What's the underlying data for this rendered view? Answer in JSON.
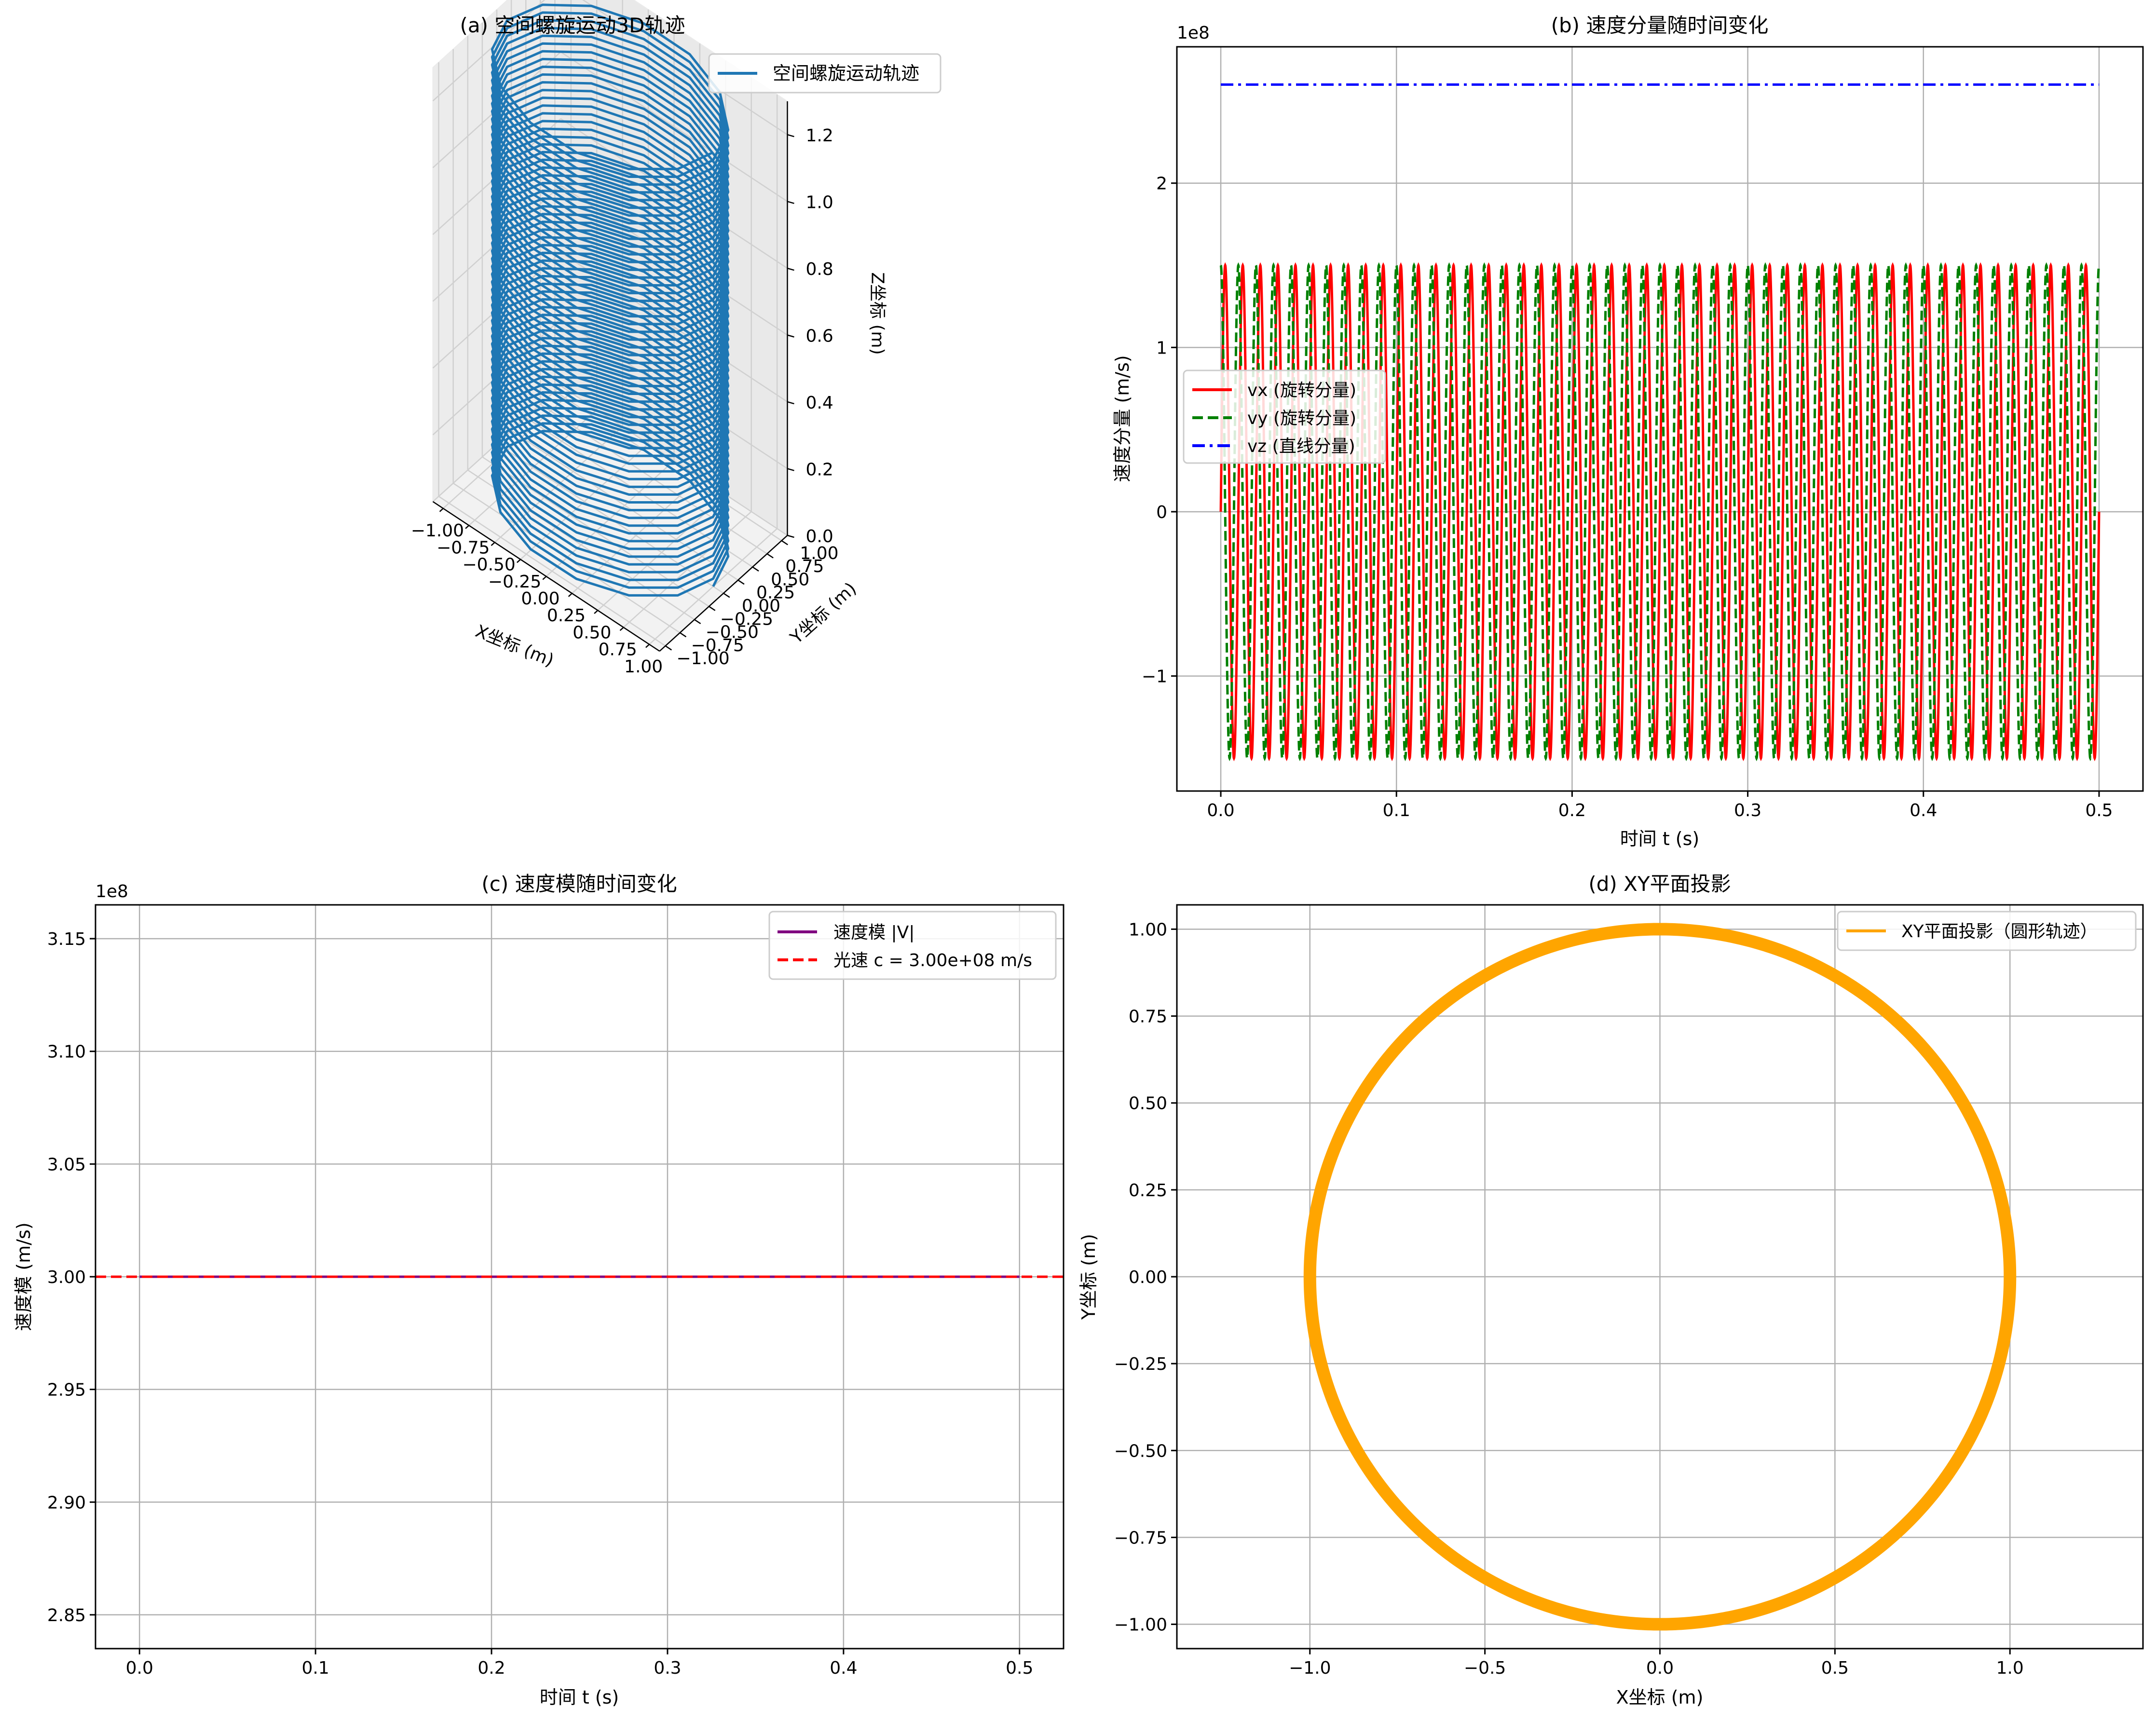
{
  "chart_data": [
    {
      "type": "line3d",
      "title": "(a) 空间螺旋运动3D轨迹",
      "xlabel": "X坐标 (m)",
      "ylabel": "Y坐标 (m)",
      "zlabel": "Z坐标 (m)",
      "xlim": [
        -1.1,
        1.1
      ],
      "ylim": [
        -1.1,
        1.1
      ],
      "zlim": [
        0.0,
        1.3
      ],
      "x_ticks": [
        "−1.00",
        "−0.75",
        "−0.50",
        "−0.25",
        "0.00",
        "0.25",
        "0.50",
        "0.75",
        "1.00"
      ],
      "y_ticks": [
        "−1.00",
        "−0.75",
        "−0.50",
        "−0.25",
        "0.00",
        "0.25",
        "0.50",
        "0.75",
        "1.00"
      ],
      "z_ticks": [
        "0.0",
        "0.2",
        "0.4",
        "0.6",
        "0.8",
        "1.0",
        "1.2"
      ],
      "series": [
        {
          "name": "空间螺旋运动轨迹",
          "color": "#1f77b4",
          "radius": 1.0,
          "turns": 56,
          "z_start": 0.0,
          "z_end": 1.3
        }
      ],
      "legend": "upper-right",
      "grid": true
    },
    {
      "type": "line",
      "title": "(b) 速度分量随时间变化",
      "xlabel": "时间 t (s)",
      "ylabel": "速度分量 (m/s)",
      "offset_text": "1e8",
      "xlim": [
        -0.025,
        0.525
      ],
      "ylim": [
        -1.7,
        2.83
      ],
      "x_ticks": [
        "0.0",
        "0.1",
        "0.2",
        "0.3",
        "0.4",
        "0.5"
      ],
      "y_ticks": [
        "−1",
        "0",
        "1",
        "2"
      ],
      "series": [
        {
          "name": "vx (旋转分量)",
          "color": "#ff0000",
          "style": "solid",
          "amplitude": 1.5,
          "cycles": 50,
          "phase": "sin"
        },
        {
          "name": "vy (旋转分量)",
          "color": "#008000",
          "style": "dashed",
          "amplitude": 1.5,
          "cycles": 50,
          "phase": "cos"
        },
        {
          "name": "vz (直线分量)",
          "color": "#0000ff",
          "style": "dashdot",
          "value": 2.6
        }
      ],
      "legend": "center-left",
      "grid": true
    },
    {
      "type": "line",
      "title": "(c) 速度模随时间变化",
      "xlabel": "时间 t (s)",
      "ylabel": "速度模 (m/s)",
      "offset_text": "1e8",
      "xlim": [
        -0.025,
        0.525
      ],
      "ylim": [
        2.835,
        3.165
      ],
      "x_ticks": [
        "0.0",
        "0.1",
        "0.2",
        "0.3",
        "0.4",
        "0.5"
      ],
      "y_ticks": [
        "2.85",
        "2.90",
        "2.95",
        "3.00",
        "3.05",
        "3.10",
        "3.15"
      ],
      "series": [
        {
          "name": "速度模 |V|",
          "color": "#800080",
          "style": "solid",
          "x": [
            0.0,
            0.5
          ],
          "y": [
            3.0,
            3.0
          ]
        },
        {
          "name": "光速 c = 3.00e+08 m/s",
          "color": "#ff0000",
          "style": "dashed",
          "value": 3.0
        }
      ],
      "legend": "upper-right",
      "grid": true
    },
    {
      "type": "line",
      "title": "(d) XY平面投影",
      "xlabel": "X坐标 (m)",
      "ylabel": "Y坐标 (m)",
      "xlim": [
        -1.38,
        1.38
      ],
      "ylim": [
        -1.07,
        1.07
      ],
      "x_ticks": [
        "−1.0",
        "−0.5",
        "0.0",
        "0.5",
        "1.0"
      ],
      "y_ticks": [
        "−1.00",
        "−0.75",
        "−0.50",
        "−0.25",
        "0.00",
        "0.25",
        "0.50",
        "0.75",
        "1.00"
      ],
      "series": [
        {
          "name": "XY平面投影（圆形轨迹）",
          "color": "#ffa500",
          "style": "solid",
          "radius": 1.0
        }
      ],
      "legend": "upper-right",
      "grid": true
    }
  ]
}
